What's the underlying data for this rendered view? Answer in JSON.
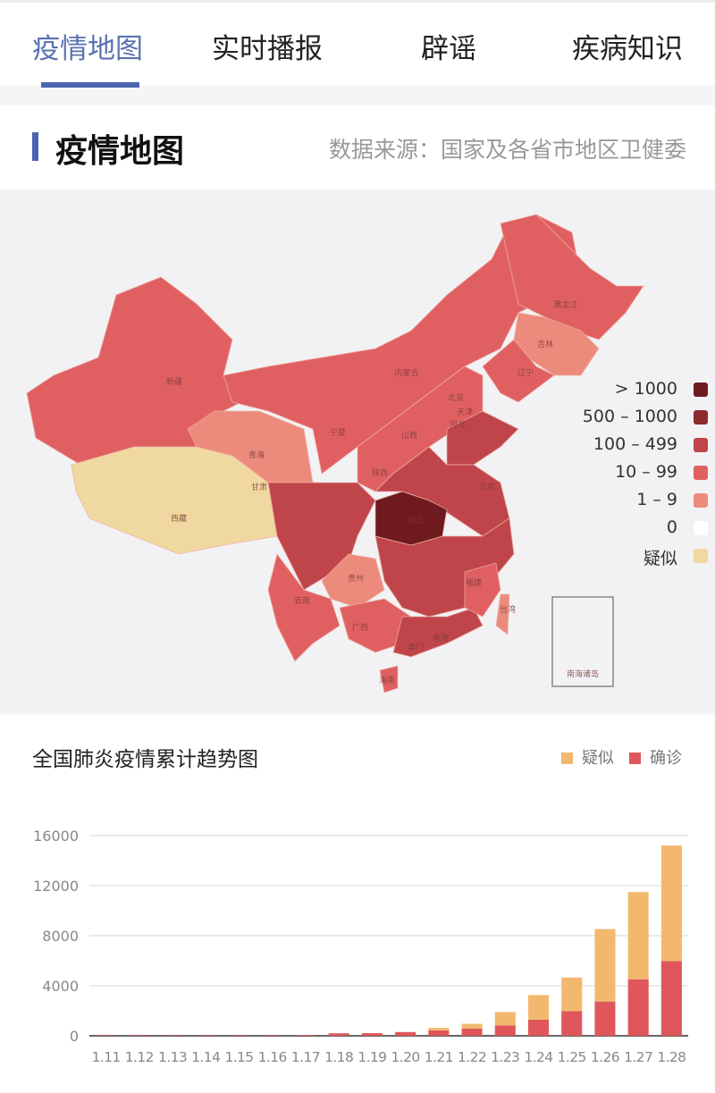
{
  "tabs": [
    {
      "label": "疫情地图",
      "active": true
    },
    {
      "label": "实时播报",
      "active": false
    },
    {
      "label": "辟谣",
      "active": false
    },
    {
      "label": "疾病知识",
      "active": false
    }
  ],
  "section": {
    "title": "疫情地图",
    "source": "数据来源：国家及各省市地区卫健委"
  },
  "map": {
    "legend": [
      {
        "label": "> 1000",
        "color": "#6e1a1e"
      },
      {
        "label": "500 – 1000",
        "color": "#8f2a2e"
      },
      {
        "label": "100 – 499",
        "color": "#c0454a"
      },
      {
        "label": "10 – 99",
        "color": "#e06062"
      },
      {
        "label": "1 – 9",
        "color": "#ec8b7c"
      },
      {
        "label": "0",
        "color": "#ffffff"
      },
      {
        "label": "疑似",
        "color": "#f0d9a0"
      }
    ],
    "labels": [
      "新疆",
      "西藏",
      "青海",
      "甘肃",
      "宁夏",
      "内蒙古",
      "黑龙江",
      "吉林",
      "辽宁",
      "北京",
      "天津",
      "河北",
      "山西",
      "陕西",
      "湖北",
      "贵州",
      "云南",
      "广西",
      "福建",
      "台湾",
      "香港",
      "澳门",
      "海南",
      "江苏",
      "南海诸岛"
    ]
  },
  "chart_data": {
    "type": "bar",
    "stacked": true,
    "title": "全国肺炎疫情累计趋势图",
    "categories": [
      "1.11",
      "1.12",
      "1.13",
      "1.14",
      "1.15",
      "1.16",
      "1.17",
      "1.18",
      "1.19",
      "1.20",
      "1.21",
      "1.22",
      "1.23",
      "1.24",
      "1.25",
      "1.26",
      "1.27",
      "1.28"
    ],
    "series": [
      {
        "name": "确诊",
        "color": "#e0575b",
        "values": [
          41,
          41,
          41,
          41,
          41,
          41,
          62,
          200,
          210,
          300,
          440,
          570,
          830,
          1290,
          1980,
          2740,
          4520,
          5970
        ]
      },
      {
        "name": "疑似",
        "color": "#f2b96e",
        "values": [
          0,
          0,
          0,
          0,
          0,
          0,
          0,
          0,
          0,
          0,
          200,
          390,
          1070,
          1970,
          2680,
          5790,
          6970,
          9240
        ]
      }
    ],
    "legend_order": [
      "疑似",
      "确诊"
    ],
    "yticks": [
      "0",
      "4000",
      "8000",
      "12000",
      "16000"
    ],
    "ylim": [
      0,
      16000
    ],
    "grid": true,
    "legend_position": "top-right"
  }
}
